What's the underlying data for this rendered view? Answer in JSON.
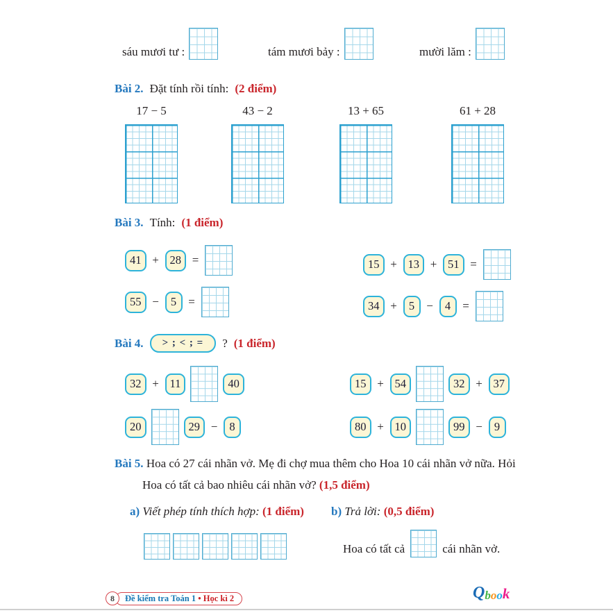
{
  "colors": {
    "accent_blue": "#2478be",
    "accent_red": "#c9252b",
    "grid_line": "#a5d7ea",
    "grid_border": "#4fabd0",
    "grid_bold": "#2ba0cf",
    "box_border": "#2db3da",
    "box_fill": "#fcf6d5",
    "footer_teal": "#1878b5",
    "footer_red": "#cc2127"
  },
  "top_row": [
    {
      "label": "sáu mươi tư :"
    },
    {
      "label": "tám mươi bảy :"
    },
    {
      "label": "mười lăm :"
    }
  ],
  "bai2": {
    "title": "Bài 2.",
    "instruction": "Đặt tính rồi tính:",
    "points": "(2 điểm)",
    "problems": [
      "17 − 5",
      "43 − 2",
      "13 + 65",
      "61 + 28"
    ]
  },
  "bai3": {
    "title": "Bài 3.",
    "instruction": "Tính:",
    "points": "(1 điểm)",
    "rows": [
      {
        "tokens": [
          [
            "num",
            "41"
          ],
          [
            "op",
            "+"
          ],
          [
            "num",
            "28"
          ],
          [
            "op",
            "="
          ],
          [
            "grid",
            "s"
          ]
        ]
      },
      {
        "tokens": [
          [
            "num",
            "55"
          ],
          [
            "op",
            "−"
          ],
          [
            "num",
            "5"
          ],
          [
            "op",
            "="
          ],
          [
            "grid",
            "s"
          ]
        ]
      },
      {
        "tokens": [
          [
            "num",
            "15"
          ],
          [
            "op",
            "+"
          ],
          [
            "num",
            "13"
          ],
          [
            "op",
            "+"
          ],
          [
            "num",
            "51"
          ],
          [
            "op",
            "="
          ],
          [
            "grid",
            "s"
          ]
        ]
      },
      {
        "tokens": [
          [
            "num",
            "34"
          ],
          [
            "op",
            "+"
          ],
          [
            "num",
            "5"
          ],
          [
            "op",
            "−"
          ],
          [
            "num",
            "4"
          ],
          [
            "op",
            "="
          ],
          [
            "grid",
            "s"
          ]
        ]
      }
    ]
  },
  "bai4": {
    "title": "Bài 4.",
    "box_label": "> ; < ; =",
    "question_mark": "?",
    "points": "(1 điểm)",
    "rows": [
      {
        "tokens": [
          [
            "num",
            "32"
          ],
          [
            "op",
            "+"
          ],
          [
            "num",
            "11"
          ],
          [
            "grid",
            "tall"
          ],
          [
            "num",
            "40"
          ]
        ]
      },
      {
        "tokens": [
          [
            "num",
            "20"
          ],
          [
            "grid",
            "tall"
          ],
          [
            "num",
            "29"
          ],
          [
            "op",
            "−"
          ],
          [
            "num",
            "8"
          ]
        ]
      },
      {
        "tokens": [
          [
            "num",
            "15"
          ],
          [
            "op",
            "+"
          ],
          [
            "num",
            "54"
          ],
          [
            "grid",
            "tall"
          ],
          [
            "num",
            "32"
          ],
          [
            "op",
            "+"
          ],
          [
            "num",
            "37"
          ]
        ]
      },
      {
        "tokens": [
          [
            "num",
            "80"
          ],
          [
            "op",
            "+"
          ],
          [
            "num",
            "10"
          ],
          [
            "grid",
            "tall"
          ],
          [
            "num",
            "99"
          ],
          [
            "op",
            "−"
          ],
          [
            "num",
            "9"
          ]
        ]
      }
    ]
  },
  "bai5": {
    "title": "Bài 5.",
    "text": "Hoa có 27 cái nhãn vở. Mẹ đi chợ mua thêm cho Hoa 10 cái nhãn vở nữa. Hỏi Hoa có tất cả bao nhiêu cái nhãn vở?",
    "points": "(1,5 điểm)",
    "a_label": "a)",
    "a_text": "Viết phép tính thích hợp:",
    "a_points": "(1 điểm)",
    "b_label": "b)",
    "b_text": "Trả lời:",
    "b_points": "(0,5 điểm)",
    "answer_prefix": "Hoa có tất cả",
    "answer_suffix": "cái nhãn vở."
  },
  "footer": {
    "page_number": "8",
    "series": "Đề kiểm tra Toán 1",
    "separator": "•",
    "term": "Học kì 2",
    "logo_letters": [
      {
        "ch": "Q",
        "color": "#1b6cb5",
        "size": 24
      },
      {
        "ch": "b",
        "color": "#45b549",
        "size": 17
      },
      {
        "ch": "o",
        "color": "#f7941d",
        "size": 17
      },
      {
        "ch": "o",
        "color": "#29abe2",
        "size": 17
      },
      {
        "ch": "k",
        "color": "#ec1e8c",
        "size": 21
      }
    ]
  }
}
